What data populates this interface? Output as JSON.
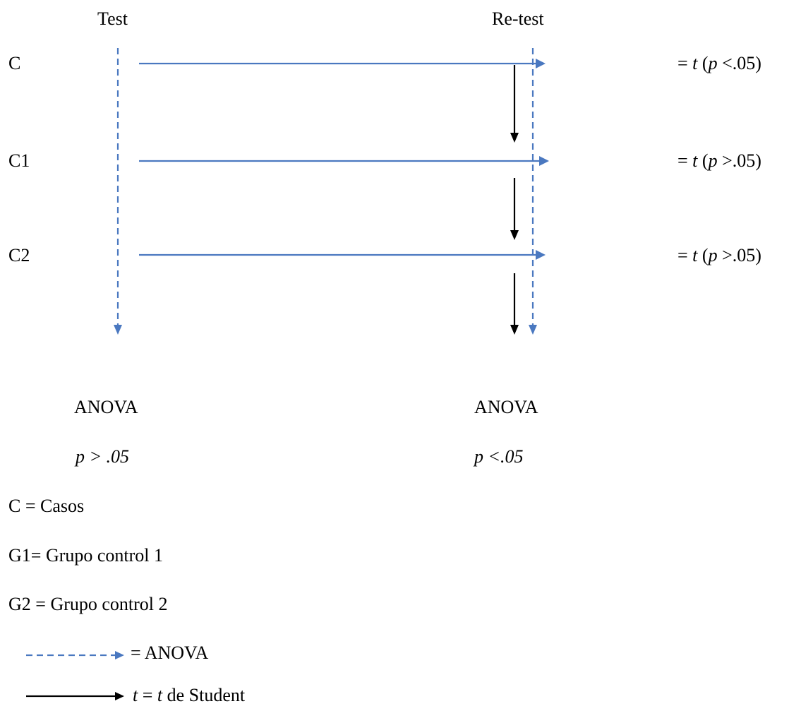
{
  "headers": {
    "test": "Test",
    "retest": "Re-test"
  },
  "rows": [
    {
      "label": "C",
      "eq": "= ",
      "t": "t",
      "open": "  (",
      "p": "p",
      "rel": " <.05)"
    },
    {
      "label": "C1",
      "eq": "= ",
      "t": "t",
      "open": "  (",
      "p": "p",
      "rel": " >.05)"
    },
    {
      "label": "C2",
      "eq": "= ",
      "t": "t",
      "open": "  (",
      "p": "p",
      "rel": " >.05)"
    }
  ],
  "anova": {
    "left": {
      "label": "ANOVA",
      "p": "p > .05"
    },
    "right": {
      "label": "ANOVA",
      "p": "p <.05"
    }
  },
  "legend": {
    "c": "C = Casos",
    "g1": "G1= Grupo control 1",
    "g2": "G2 = Grupo control 2",
    "dashed": "= ANOVA",
    "solid_t": "t",
    "solid_eq": " = ",
    "solid_t2": "t",
    "solid_rest": " de Student"
  },
  "colors": {
    "blue": "#4a78c0",
    "black": "#000000"
  }
}
